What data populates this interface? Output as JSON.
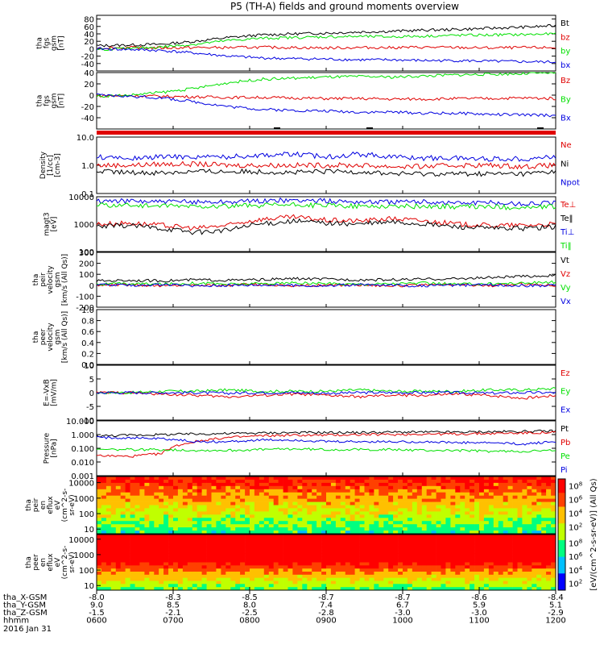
{
  "title": "P5 (TH-A) fields and ground moments overview",
  "colors": {
    "black": "#000000",
    "red": "#e00000",
    "green": "#00e000",
    "blue": "#0000e0",
    "white": "#ffffff"
  },
  "chart_data": [
    {
      "type": "line",
      "ylabel": "tha fgs gsm [nT]",
      "ylim": [
        -60,
        90
      ],
      "yticks": [
        "-40",
        "-20",
        "0",
        "20",
        "40",
        "60",
        "80"
      ],
      "series": [
        {
          "name": "Bt",
          "color": "black",
          "values": [
            8,
            10,
            12,
            20,
            30,
            37,
            40,
            42,
            45,
            47,
            50,
            52,
            55,
            58,
            62
          ]
        },
        {
          "name": "bz",
          "color": "red",
          "values": [
            2,
            3,
            2,
            3,
            3,
            4,
            3,
            2,
            3,
            3,
            4,
            3,
            2,
            3,
            3
          ]
        },
        {
          "name": "by",
          "color": "green",
          "values": [
            -2,
            0,
            5,
            12,
            22,
            28,
            30,
            32,
            33,
            32,
            34,
            36,
            37,
            38,
            40
          ]
        },
        {
          "name": "bx",
          "color": "blue",
          "values": [
            0,
            -2,
            -5,
            -12,
            -20,
            -25,
            -27,
            -28,
            -30,
            -30,
            -32,
            -32,
            -34,
            -35,
            -36
          ]
        }
      ]
    },
    {
      "type": "line",
      "ylabel": "tha fgs gsm [nT]",
      "ylim": [
        -60,
        40
      ],
      "yticks": [
        "-40",
        "-20",
        "0",
        "20",
        "40"
      ],
      "series": [
        {
          "name": "Bz",
          "color": "red",
          "values": [
            -1,
            -1,
            -2,
            -3,
            -4,
            -4,
            -5,
            -6,
            -6,
            -7,
            -7,
            -6,
            -6,
            -5,
            -6
          ]
        },
        {
          "name": "By",
          "color": "green",
          "values": [
            -2,
            0,
            5,
            12,
            22,
            28,
            30,
            32,
            33,
            32,
            34,
            36,
            37,
            38,
            40
          ]
        },
        {
          "name": "Bx",
          "color": "blue",
          "values": [
            0,
            -2,
            -5,
            -12,
            -20,
            -25,
            -27,
            -28,
            -30,
            -30,
            -32,
            -32,
            -34,
            -35,
            -36
          ]
        }
      ]
    },
    {
      "type": "line",
      "ylabel": "Density [1/cc] [cm-3]",
      "yscale": "log",
      "ylim": [
        0.1,
        10
      ],
      "yticks": [
        "0.1",
        "1.0",
        "10.0"
      ],
      "series": [
        {
          "name": "Ne",
          "color": "red",
          "values": [
            1.0,
            1.0,
            1.1,
            1.1,
            1.0,
            1.0,
            1.0,
            1.0,
            1.0,
            0.9,
            0.9,
            1.0,
            1.0,
            0.9,
            1.0
          ]
        },
        {
          "name": "Ni",
          "color": "black",
          "values": [
            0.6,
            0.55,
            0.55,
            0.6,
            0.6,
            0.6,
            0.55,
            0.6,
            0.6,
            0.5,
            0.5,
            0.5,
            0.5,
            0.5,
            0.6
          ]
        },
        {
          "name": "Npot",
          "color": "blue",
          "values": [
            2.0,
            1.7,
            2.0,
            2.0,
            2.0,
            2.3,
            2.5,
            2.0,
            2.5,
            2.0,
            1.8,
            1.8,
            1.7,
            1.7,
            2.0
          ]
        }
      ]
    },
    {
      "type": "line",
      "ylabel": "magt3 [eV]",
      "yscale": "log",
      "ylim": [
        100,
        10000
      ],
      "yticks": [
        "100",
        "1000",
        "10000"
      ],
      "series": [
        {
          "name": "Te⊥",
          "color": "red",
          "values": [
            1000,
            1100,
            900,
            700,
            900,
            1500,
            1800,
            1400,
            1300,
            1600,
            1300,
            1000,
            900,
            900,
            1000
          ]
        },
        {
          "name": "Te‖",
          "color": "black",
          "values": [
            800,
            900,
            700,
            500,
            600,
            1000,
            1300,
            1100,
            1000,
            1200,
            1000,
            800,
            700,
            700,
            800
          ]
        },
        {
          "name": "Ti⊥",
          "color": "blue",
          "values": [
            7000,
            7000,
            6500,
            6500,
            6500,
            7000,
            7500,
            7000,
            6500,
            6500,
            6500,
            6000,
            6000,
            5500,
            6000
          ]
        },
        {
          "name": "Ti‖",
          "color": "green",
          "values": [
            5000,
            5000,
            4500,
            4500,
            4500,
            4800,
            5000,
            4800,
            4500,
            4500,
            4500,
            4300,
            4300,
            4000,
            4300
          ]
        }
      ]
    },
    {
      "type": "line",
      "ylabel": "tha peir velocity gsm [km/s (All Qs)]",
      "ylim": [
        -200,
        300
      ],
      "yticks": [
        "-200",
        "-100",
        "0",
        "100",
        "200",
        "300"
      ],
      "series": [
        {
          "name": "Vt",
          "color": "black",
          "values": [
            40,
            45,
            40,
            50,
            45,
            50,
            60,
            55,
            50,
            50,
            55,
            60,
            70,
            80,
            90
          ]
        },
        {
          "name": "Vz",
          "color": "red",
          "values": [
            0,
            5,
            -5,
            5,
            0,
            10,
            -5,
            0,
            5,
            -5,
            0,
            5,
            -5,
            10,
            0
          ]
        },
        {
          "name": "Vy",
          "color": "green",
          "values": [
            10,
            15,
            10,
            20,
            10,
            15,
            20,
            15,
            10,
            15,
            20,
            10,
            15,
            20,
            30
          ]
        },
        {
          "name": "Vx",
          "color": "blue",
          "values": [
            5,
            0,
            5,
            -5,
            0,
            5,
            0,
            -5,
            5,
            0,
            -5,
            0,
            5,
            -5,
            0
          ]
        }
      ]
    },
    {
      "type": "line",
      "ylabel": "tha peer velocity gsm [km/s (All Qs)]",
      "ylim": [
        0,
        1
      ],
      "yticks": [
        "0.0",
        "0.2",
        "0.4",
        "0.6",
        "0.8",
        "1.0"
      ],
      "series": [
        {
          "name": "Vt",
          "color": "black",
          "values": []
        },
        {
          "name": "Vz",
          "color": "red",
          "values": []
        },
        {
          "name": "Vy",
          "color": "green",
          "values": []
        },
        {
          "name": "Vx",
          "color": "blue",
          "values": []
        }
      ]
    },
    {
      "type": "line",
      "ylabel": "E=-VxB [mV/m]",
      "ylim": [
        -10,
        10
      ],
      "yticks": [
        "-10",
        "-5",
        "0",
        "5",
        "10"
      ],
      "series": [
        {
          "name": "Ez",
          "color": "red",
          "values": [
            0,
            0,
            -0.5,
            -1,
            -1.5,
            -1,
            -0.5,
            -1,
            -1.5,
            -1,
            -1,
            -0.5,
            -1,
            -2,
            -1
          ]
        },
        {
          "name": "Ey",
          "color": "green",
          "values": [
            0,
            0,
            0.5,
            0.5,
            1,
            0.5,
            0.5,
            0.5,
            1,
            0.5,
            0.5,
            0.5,
            1,
            1,
            1.5
          ]
        },
        {
          "name": "Ex",
          "color": "blue",
          "values": [
            0,
            0,
            0,
            0,
            -0.2,
            0,
            0,
            -0.2,
            0,
            0,
            0,
            0,
            -0.2,
            0,
            0
          ]
        }
      ]
    },
    {
      "type": "line",
      "ylabel": "Pressure [nPa]",
      "yscale": "log",
      "ylim": [
        0.001,
        10
      ],
      "yticks": [
        "0.001",
        "0.010",
        "0.100",
        "1.000",
        "10.000"
      ],
      "series": [
        {
          "name": "Pt",
          "color": "black",
          "values": [
            0.8,
            0.9,
            1.0,
            1.1,
            1.2,
            1.3,
            1.4,
            1.4,
            1.4,
            1.5,
            1.5,
            1.5,
            1.6,
            1.7,
            1.8
          ]
        },
        {
          "name": "Pb",
          "color": "red",
          "values": [
            0.03,
            0.025,
            0.04,
            0.3,
            0.6,
            0.8,
            0.9,
            0.9,
            1.0,
            1.0,
            1.1,
            1.1,
            1.2,
            1.3,
            1.4
          ]
        },
        {
          "name": "Pe",
          "color": "green",
          "values": [
            0.08,
            0.08,
            0.08,
            0.07,
            0.07,
            0.08,
            0.09,
            0.08,
            0.08,
            0.08,
            0.07,
            0.07,
            0.06,
            0.06,
            0.07
          ]
        },
        {
          "name": "Pi",
          "color": "blue",
          "values": [
            0.6,
            0.6,
            0.5,
            0.3,
            0.3,
            0.4,
            0.4,
            0.3,
            0.3,
            0.3,
            0.3,
            0.25,
            0.25,
            0.2,
            0.3
          ]
        }
      ]
    },
    {
      "type": "heatmap",
      "ylabel": "tha peir en eflux eV (cm^2-s-sr-eV)",
      "yscale": "log",
      "ylim": [
        5,
        25000
      ],
      "yticks": [
        "10",
        "100",
        "1000",
        "10000"
      ]
    },
    {
      "type": "heatmap",
      "ylabel": "tha peer en eflux eV (cm^2-s-sr-eV)",
      "yscale": "log",
      "ylim": [
        5,
        20000
      ],
      "yticks": [
        "10",
        "100",
        "1000",
        "10000"
      ]
    }
  ],
  "colorbar": {
    "label": "[eV/(cm^2-s-sr-eV)] (All Qs)",
    "ion_ticks": [
      "10^2",
      "10^4",
      "10^6",
      "10^8"
    ],
    "electron_ticks": [
      "10^2",
      "10^4",
      "10^6",
      "10^8"
    ]
  },
  "xaxis": {
    "rows": [
      {
        "label": "tha_X-GSM",
        "values": [
          "-8.0",
          "-8.3",
          "-8.5",
          "-8.7",
          "-8.7",
          "-8.6",
          "-8.4"
        ]
      },
      {
        "label": "tha_Y-GSM",
        "values": [
          "9.0",
          "8.5",
          "8.0",
          "7.4",
          "6.7",
          "5.9",
          "5.1"
        ]
      },
      {
        "label": "tha_Z-GSM",
        "values": [
          "-1.5",
          "-2.1",
          "-2.5",
          "-2.8",
          "-3.0",
          "-3.0",
          "-2.9"
        ]
      },
      {
        "label": "hhmm",
        "values": [
          "0600",
          "0700",
          "0800",
          "0900",
          "1000",
          "1100",
          "1200"
        ]
      }
    ],
    "date": "2016 Jan 31"
  },
  "ylabel_lines": [
    [
      "tha",
      "fgs",
      "gsm",
      "[nT]"
    ],
    [
      "tha",
      "fgs",
      "gsm",
      "[nT]"
    ],
    [
      "Density",
      "[1/cc]",
      "[cm-3]"
    ],
    [
      "magt3",
      "[eV]"
    ],
    [
      "tha",
      "peir",
      "velocity",
      "gsm",
      "[km/s (All Qs)]"
    ],
    [
      "tha",
      "peer",
      "velocity",
      "gsm",
      "[km/s (All Qs)]"
    ],
    [
      "E=-VxB",
      "[mV/m]"
    ],
    [
      "Pressure",
      "[nPa]"
    ],
    [
      "tha",
      "peir",
      "en",
      "eflux",
      "eV",
      "(cm^2-s-",
      "sr-eV)"
    ],
    [
      "tha",
      "peer",
      "en",
      "eflux",
      "eV",
      "(cm^2-s-",
      "sr-eV)"
    ]
  ]
}
